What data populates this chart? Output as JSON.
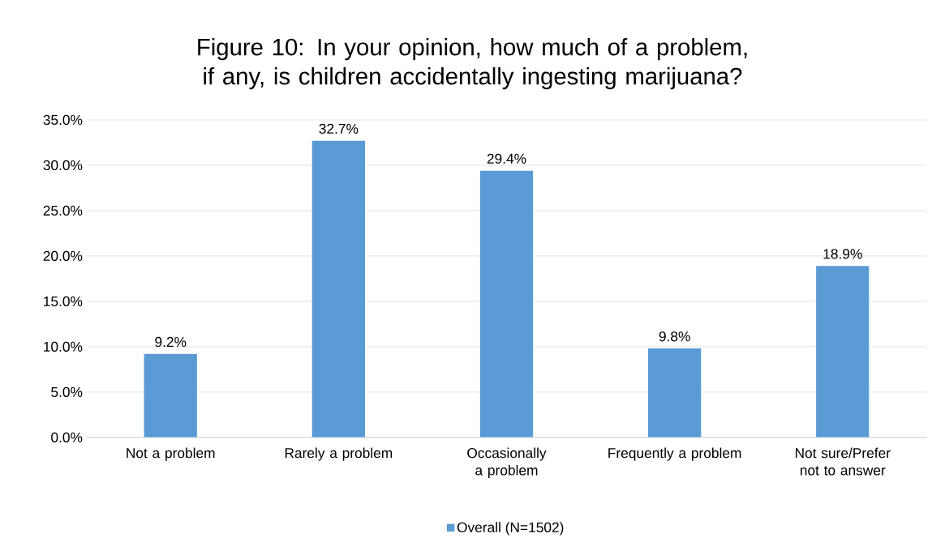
{
  "chart_data": {
    "type": "bar",
    "title": "Figure 10: In your opinion, how much of a problem, if any, is children accidentally ingesting marijuana?",
    "categories": [
      "Not a problem",
      "Rarely a problem",
      "Occasionally a problem",
      "Frequently a problem",
      "Not sure/Prefer not to answer"
    ],
    "series": [
      {
        "name": "Overall (N=1502)",
        "color": "#5b9bd5",
        "values": [
          9.2,
          32.7,
          29.4,
          9.8,
          18.9
        ],
        "value_labels": [
          "9.2%",
          "32.7%",
          "29.4%",
          "9.8%",
          "18.9%"
        ]
      }
    ],
    "ylim": [
      0,
      35
    ],
    "yticks": [
      {
        "value": 0,
        "label": "0.0%"
      },
      {
        "value": 5,
        "label": "5.0%"
      },
      {
        "value": 10,
        "label": "10.0%"
      },
      {
        "value": 15,
        "label": "15.0%"
      },
      {
        "value": 20,
        "label": "20.0%"
      },
      {
        "value": 25,
        "label": "25.0%"
      },
      {
        "value": 30,
        "label": "30.0%"
      },
      {
        "value": 35,
        "label": "35.0%"
      }
    ],
    "grid": "y",
    "legend": "bottom"
  }
}
